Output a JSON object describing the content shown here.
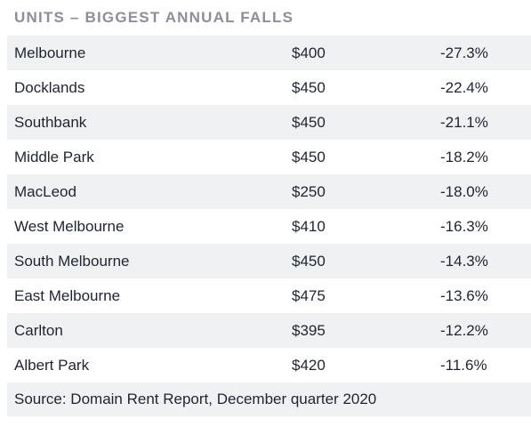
{
  "title": "UNITS – BIGGEST ANNUAL FALLS",
  "rows": [
    {
      "suburb": "Melbourne",
      "rent": "$400",
      "change": "-27.3%"
    },
    {
      "suburb": "Docklands",
      "rent": "$450",
      "change": "-22.4%"
    },
    {
      "suburb": "Southbank",
      "rent": "$450",
      "change": "-21.1%"
    },
    {
      "suburb": "Middle Park",
      "rent": "$450",
      "change": "-18.2%"
    },
    {
      "suburb": "MacLeod",
      "rent": "$250",
      "change": "-18.0%"
    },
    {
      "suburb": "West Melbourne",
      "rent": "$410",
      "change": "-16.3%"
    },
    {
      "suburb": "South Melbourne",
      "rent": "$450",
      "change": "-14.3%"
    },
    {
      "suburb": "East Melbourne",
      "rent": "$475",
      "change": "-13.6%"
    },
    {
      "suburb": "Carlton",
      "rent": "$395",
      "change": "-12.2%"
    },
    {
      "suburb": "Albert Park",
      "rent": "$420",
      "change": "-11.6%"
    }
  ],
  "source": "Source: Domain Rent Report, December quarter 2020",
  "colors": {
    "shaded_row": "#f0f1f3",
    "title": "#8c8f99",
    "text": "#1f2430"
  }
}
